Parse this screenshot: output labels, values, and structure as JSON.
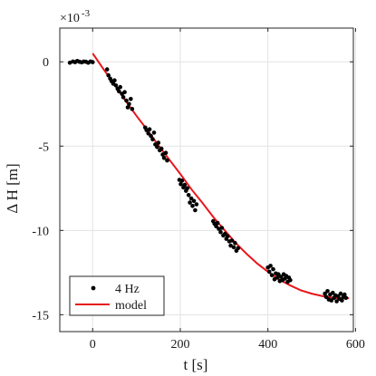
{
  "chart_data": {
    "type": "scatter",
    "title": "",
    "xlabel": "t [s]",
    "ylabel": "Δ H [m]",
    "xlim": [
      -75,
      595
    ],
    "ylim": [
      -16,
      2
    ],
    "x_ticks": [
      0,
      200,
      400,
      600
    ],
    "y_ticks": [
      0,
      -5,
      -10,
      -15
    ],
    "x_tick_labels": [
      "0",
      "200",
      "400",
      "600"
    ],
    "y_tick_labels": [
      "0",
      "-5",
      "-10",
      "-15"
    ],
    "y_multiplier_base": "×10",
    "y_multiplier_exponent": "-3",
    "grid": true,
    "legend_position": "bottom-left",
    "series": [
      {
        "name": "4 Hz",
        "kind": "markers",
        "color": "#000000",
        "points": [
          [
            -52,
            -0.05
          ],
          [
            -45,
            0.02
          ],
          [
            -40,
            -0.02
          ],
          [
            -35,
            0.05
          ],
          [
            -30,
            0.0
          ],
          [
            -25,
            -0.03
          ],
          [
            -20,
            0.02
          ],
          [
            -15,
            0.0
          ],
          [
            -10,
            -0.05
          ],
          [
            -5,
            0.02
          ],
          [
            0,
            -0.02
          ],
          [
            33,
            -0.45
          ],
          [
            36,
            -0.8
          ],
          [
            40,
            -1.0
          ],
          [
            43,
            -1.15
          ],
          [
            47,
            -1.3
          ],
          [
            50,
            -1.1
          ],
          [
            53,
            -1.4
          ],
          [
            57,
            -1.6
          ],
          [
            60,
            -1.75
          ],
          [
            63,
            -1.5
          ],
          [
            67,
            -1.9
          ],
          [
            70,
            -2.1
          ],
          [
            73,
            -1.8
          ],
          [
            77,
            -2.3
          ],
          [
            80,
            -2.7
          ],
          [
            83,
            -2.5
          ],
          [
            87,
            -2.2
          ],
          [
            90,
            -2.8
          ],
          [
            120,
            -3.9
          ],
          [
            123,
            -4.05
          ],
          [
            127,
            -4.25
          ],
          [
            130,
            -4.0
          ],
          [
            133,
            -4.4
          ],
          [
            137,
            -4.6
          ],
          [
            140,
            -4.2
          ],
          [
            143,
            -4.9
          ],
          [
            147,
            -5.05
          ],
          [
            150,
            -4.8
          ],
          [
            153,
            -5.25
          ],
          [
            157,
            -5.15
          ],
          [
            160,
            -5.5
          ],
          [
            163,
            -5.7
          ],
          [
            167,
            -5.4
          ],
          [
            170,
            -5.85
          ],
          [
            198,
            -7.0
          ],
          [
            201,
            -7.25
          ],
          [
            204,
            -7.05
          ],
          [
            207,
            -7.45
          ],
          [
            210,
            -7.3
          ],
          [
            213,
            -7.65
          ],
          [
            216,
            -7.5
          ],
          [
            219,
            -7.9
          ],
          [
            222,
            -8.35
          ],
          [
            225,
            -8.1
          ],
          [
            228,
            -8.55
          ],
          [
            231,
            -8.25
          ],
          [
            234,
            -8.8
          ],
          [
            237,
            -8.45
          ],
          [
            275,
            -9.45
          ],
          [
            278,
            -9.6
          ],
          [
            282,
            -9.75
          ],
          [
            285,
            -9.55
          ],
          [
            288,
            -9.9
          ],
          [
            292,
            -10.1
          ],
          [
            295,
            -9.85
          ],
          [
            298,
            -10.3
          ],
          [
            302,
            -10.2
          ],
          [
            305,
            -10.5
          ],
          [
            308,
            -10.35
          ],
          [
            312,
            -10.65
          ],
          [
            315,
            -10.9
          ],
          [
            318,
            -10.6
          ],
          [
            322,
            -11.0
          ],
          [
            325,
            -10.75
          ],
          [
            328,
            -11.2
          ],
          [
            332,
            -11.05
          ],
          [
            400,
            -12.2
          ],
          [
            403,
            -12.45
          ],
          [
            406,
            -12.1
          ],
          [
            409,
            -12.65
          ],
          [
            412,
            -12.3
          ],
          [
            415,
            -12.9
          ],
          [
            418,
            -12.55
          ],
          [
            421,
            -12.8
          ],
          [
            424,
            -12.6
          ],
          [
            427,
            -13.0
          ],
          [
            430,
            -12.75
          ],
          [
            433,
            -12.95
          ],
          [
            436,
            -12.6
          ],
          [
            439,
            -12.85
          ],
          [
            442,
            -12.7
          ],
          [
            445,
            -13.05
          ],
          [
            448,
            -12.8
          ],
          [
            451,
            -12.95
          ],
          [
            530,
            -13.75
          ],
          [
            533,
            -13.95
          ],
          [
            536,
            -13.6
          ],
          [
            539,
            -14.1
          ],
          [
            542,
            -13.8
          ],
          [
            545,
            -14.15
          ],
          [
            548,
            -13.7
          ],
          [
            551,
            -14.0
          ],
          [
            554,
            -13.85
          ],
          [
            557,
            -14.2
          ],
          [
            560,
            -13.9
          ],
          [
            563,
            -14.05
          ],
          [
            566,
            -13.75
          ],
          [
            569,
            -14.15
          ],
          [
            572,
            -13.95
          ],
          [
            575,
            -13.8
          ],
          [
            578,
            -14.0
          ]
        ]
      },
      {
        "name": "model",
        "kind": "line",
        "color": "#e8161b",
        "points": [
          [
            0,
            0.5
          ],
          [
            25,
            -0.45
          ],
          [
            50,
            -1.35
          ],
          [
            75,
            -2.3
          ],
          [
            100,
            -3.2
          ],
          [
            125,
            -4.05
          ],
          [
            150,
            -4.95
          ],
          [
            175,
            -5.8
          ],
          [
            200,
            -6.65
          ],
          [
            225,
            -7.55
          ],
          [
            250,
            -8.35
          ],
          [
            275,
            -9.2
          ],
          [
            300,
            -9.95
          ],
          [
            325,
            -10.7
          ],
          [
            350,
            -11.35
          ],
          [
            375,
            -11.95
          ],
          [
            400,
            -12.45
          ],
          [
            425,
            -12.9
          ],
          [
            450,
            -13.25
          ],
          [
            475,
            -13.55
          ],
          [
            500,
            -13.75
          ],
          [
            525,
            -13.9
          ],
          [
            550,
            -14.0
          ],
          [
            575,
            -14.03
          ],
          [
            585,
            -14.02
          ]
        ]
      }
    ]
  }
}
